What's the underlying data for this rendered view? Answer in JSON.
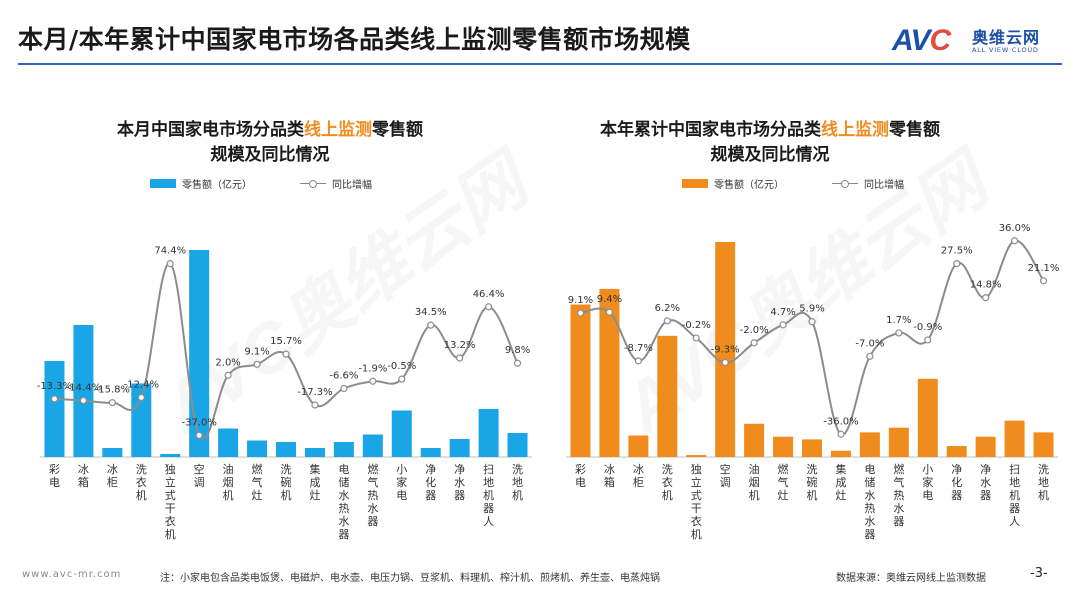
{
  "page": {
    "title": "本月/本年累计中国家电市场各品类线上监测零售额市场规模",
    "logo_mark": "AVC",
    "logo_cn": "奥维云网",
    "logo_en": "ALL VIEW CLOUD",
    "watermark": "AVC奥维云网",
    "footer_url": "www.avc-mr.com",
    "footer_note": "注：小家电包含品类电饭煲、电磁炉、电水壶、电压力锅、豆浆机、料理机、榨汁机、煎烤机、养生壶、电蒸炖锅",
    "footer_source": "数据来源：奥维云网线上监测数据",
    "page_number": "-3-"
  },
  "colors": {
    "month_bar": "#1aa5e6",
    "year_bar": "#f08c1e",
    "line": "#8c8c8c",
    "accent": "#2e63b8"
  },
  "chart_data": [
    {
      "id": "month",
      "type": "bar+line",
      "title_pre": "本月中国家电市场分品类",
      "title_highlight": "线上监测",
      "title_post": "零售额",
      "title_line2": "规模及同比情况",
      "bar_series_name": "零售额（亿元）",
      "line_series_name": "同比增幅",
      "categories": [
        "彩电",
        "冰箱",
        "冰柜",
        "洗衣机",
        "独立式干衣机",
        "空调",
        "油烟机",
        "燃气灶",
        "洗碗机",
        "集成灶",
        "电储水热水器",
        "燃气热水器",
        "小家电",
        "净化器",
        "净水器",
        "扫地机器人",
        "洗地机"
      ],
      "bar_values": [
        64,
        88,
        6,
        49,
        2,
        138,
        19,
        11,
        10,
        6,
        10,
        15,
        31,
        6,
        12,
        32,
        16
      ],
      "yoy_values": [
        -13.3,
        -14.4,
        -15.8,
        -12.4,
        74.4,
        -37.0,
        2.0,
        9.1,
        15.7,
        -17.3,
        -6.6,
        -1.9,
        -0.5,
        34.5,
        13.2,
        46.4,
        9.8
      ],
      "yoy_labels": [
        "-13.3%",
        "-14.4%",
        "-15.8%",
        "-12.4%",
        "74.4%",
        "-37.0%",
        "2.0%",
        "9.1%",
        "15.7%",
        "-17.3%",
        "-6.6%",
        "-1.9%",
        "-0.5%",
        "34.5%",
        "13.2%",
        "46.4%",
        "9.8%"
      ]
    },
    {
      "id": "year",
      "type": "bar+line",
      "title_pre": "本年累计中国家电市场分品类",
      "title_highlight": "线上监测",
      "title_post": "零售额",
      "title_line2": "规模及同比情况",
      "bar_series_name": "零售额（亿元）",
      "line_series_name": "同比增幅",
      "categories": [
        "彩电",
        "冰箱",
        "冰柜",
        "洗衣机",
        "独立式干衣机",
        "空调",
        "油烟机",
        "燃气灶",
        "洗碗机",
        "集成灶",
        "电储水热水器",
        "燃气热水器",
        "小家电",
        "净化器",
        "净水器",
        "扫地机器人",
        "洗地机"
      ],
      "bar_values": [
        390,
        430,
        55,
        310,
        5,
        550,
        85,
        52,
        45,
        16,
        63,
        75,
        200,
        28,
        52,
        93,
        63
      ],
      "yoy_values": [
        9.1,
        9.4,
        -8.7,
        6.2,
        -0.2,
        -9.3,
        -2.0,
        4.7,
        5.9,
        -36.0,
        -7.0,
        1.7,
        -0.9,
        27.5,
        14.8,
        36.0,
        21.1
      ],
      "yoy_labels": [
        "9.1%",
        "9.4%",
        "-8.7%",
        "6.2%",
        "-0.2%",
        "-9.3%",
        "-2.0%",
        "4.7%",
        "5.9%",
        "-36.0%",
        "-7.0%",
        "1.7%",
        "-0.9%",
        "27.5%",
        "14.8%",
        "36.0%",
        "21.1%"
      ]
    }
  ]
}
